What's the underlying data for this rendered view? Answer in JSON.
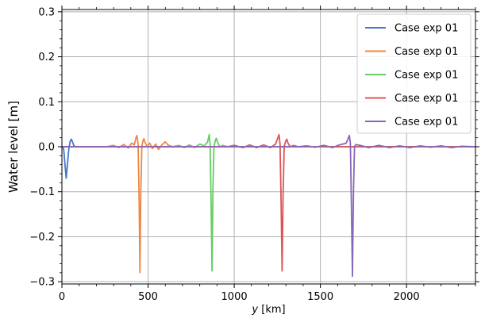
{
  "chart_data": {
    "type": "line",
    "xlabel_italic": "y",
    "xlabel_unit": " [km]",
    "ylabel": "Water level [m]",
    "xlim": [
      0,
      2400
    ],
    "ylim": [
      -0.305,
      0.305
    ],
    "xticks": [
      0,
      500,
      1000,
      1500,
      2000
    ],
    "yticks": [
      -0.3,
      -0.2,
      -0.1,
      0.0,
      0.1,
      0.2,
      0.3
    ],
    "xtick_labels": [
      "0",
      "500",
      "1000",
      "1500",
      "2000"
    ],
    "ytick_labels": [
      "−0.3",
      "−0.2",
      "−0.1",
      "0.0",
      "0.1",
      "0.2",
      "0.3"
    ],
    "grid": true,
    "zero_line": true,
    "legend_position": "top-right",
    "series": [
      {
        "name": "Case exp 01",
        "color": "#4477cc",
        "points": [
          [
            0,
            0
          ],
          [
            10,
            -0.005
          ],
          [
            18,
            -0.04
          ],
          [
            25,
            -0.07
          ],
          [
            32,
            -0.04
          ],
          [
            40,
            -0.005
          ],
          [
            48,
            0.012
          ],
          [
            55,
            0.017
          ],
          [
            62,
            0.01
          ],
          [
            70,
            0.002
          ],
          [
            80,
            0
          ],
          [
            2400,
            0
          ]
        ]
      },
      {
        "name": "Case exp 01",
        "color": "#ee8844",
        "points": [
          [
            0,
            0
          ],
          [
            260,
            0
          ],
          [
            300,
            0.003
          ],
          [
            330,
            -0.002
          ],
          [
            360,
            0.005
          ],
          [
            385,
            -0.003
          ],
          [
            405,
            0.008
          ],
          [
            420,
            0.004
          ],
          [
            430,
            0.02
          ],
          [
            436,
            0.025
          ],
          [
            442,
            0.005
          ],
          [
            448,
            -0.12
          ],
          [
            453,
            -0.28
          ],
          [
            458,
            -0.1
          ],
          [
            464,
            0
          ],
          [
            470,
            0.013
          ],
          [
            476,
            0.018
          ],
          [
            482,
            0.01
          ],
          [
            495,
            0
          ],
          [
            510,
            0.008
          ],
          [
            525,
            -0.004
          ],
          [
            545,
            0.006
          ],
          [
            560,
            -0.006
          ],
          [
            580,
            0.004
          ],
          [
            600,
            0.011
          ],
          [
            615,
            0.004
          ],
          [
            640,
            0
          ],
          [
            2400,
            0
          ]
        ]
      },
      {
        "name": "Case exp 01",
        "color": "#66cc66",
        "points": [
          [
            0,
            0
          ],
          [
            640,
            0
          ],
          [
            680,
            0.003
          ],
          [
            710,
            -0.002
          ],
          [
            740,
            0.004
          ],
          [
            770,
            -0.002
          ],
          [
            800,
            0.006
          ],
          [
            825,
            0.002
          ],
          [
            845,
            0.01
          ],
          [
            855,
            0.027
          ],
          [
            860,
            0.005
          ],
          [
            866,
            -0.13
          ],
          [
            871,
            -0.276
          ],
          [
            876,
            -0.1
          ],
          [
            882,
            0
          ],
          [
            890,
            0.013
          ],
          [
            896,
            0.019
          ],
          [
            904,
            0.01
          ],
          [
            915,
            0
          ],
          [
            935,
            0.003
          ],
          [
            960,
            0
          ],
          [
            2400,
            0
          ]
        ]
      },
      {
        "name": "Case exp 01",
        "color": "#dd5555",
        "points": [
          [
            0,
            0
          ],
          [
            960,
            0
          ],
          [
            1000,
            0.003
          ],
          [
            1050,
            -0.002
          ],
          [
            1090,
            0.004
          ],
          [
            1130,
            -0.002
          ],
          [
            1170,
            0.004
          ],
          [
            1210,
            -0.002
          ],
          [
            1240,
            0.006
          ],
          [
            1260,
            0.027
          ],
          [
            1266,
            0.005
          ],
          [
            1272,
            -0.12
          ],
          [
            1278,
            -0.276
          ],
          [
            1284,
            -0.1
          ],
          [
            1290,
            0
          ],
          [
            1298,
            0.012
          ],
          [
            1305,
            0.017
          ],
          [
            1312,
            0.008
          ],
          [
            1325,
            0
          ],
          [
            1345,
            0.003
          ],
          [
            1370,
            0
          ],
          [
            2400,
            0
          ]
        ]
      },
      {
        "name": "Case exp 01",
        "color": "#8866bb",
        "points": [
          [
            0,
            0
          ],
          [
            1370,
            0
          ],
          [
            1420,
            0.002
          ],
          [
            1470,
            -0.001
          ],
          [
            1520,
            0.003
          ],
          [
            1570,
            -0.002
          ],
          [
            1610,
            0.004
          ],
          [
            1650,
            0.008
          ],
          [
            1668,
            0.025
          ],
          [
            1674,
            0.008
          ],
          [
            1680,
            -0.13
          ],
          [
            1686,
            -0.288
          ],
          [
            1692,
            -0.1
          ],
          [
            1698,
            0
          ],
          [
            1706,
            0.005
          ],
          [
            1730,
            0.003
          ],
          [
            1780,
            -0.002
          ],
          [
            1840,
            0.003
          ],
          [
            1900,
            -0.002
          ],
          [
            1960,
            0.002
          ],
          [
            2020,
            -0.002
          ],
          [
            2080,
            0.002
          ],
          [
            2140,
            -0.001
          ],
          [
            2200,
            0.002
          ],
          [
            2260,
            -0.002
          ],
          [
            2320,
            0.001
          ],
          [
            2400,
            0
          ]
        ]
      }
    ]
  }
}
